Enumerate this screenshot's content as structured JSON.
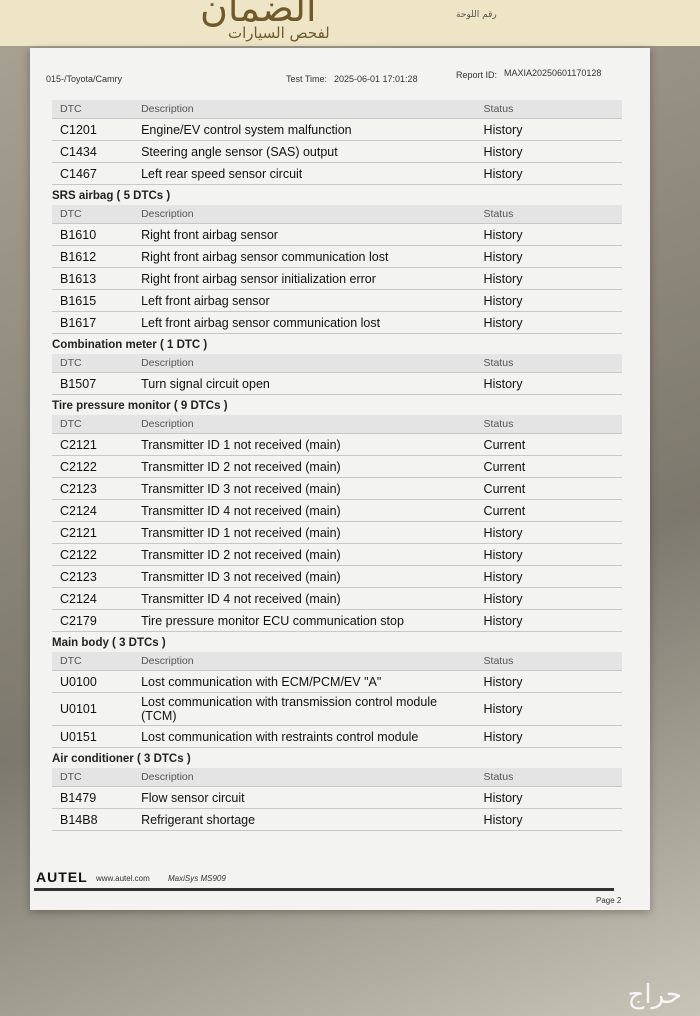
{
  "header": {
    "logo": "الضمان",
    "logo_subtitle": "لفحص السيارات",
    "plate_label": "رقم اللوحة"
  },
  "report": {
    "vehicle": "015-/Toyota/Camry",
    "test_time_label": "Test Time:",
    "test_time": "2025-06-01 17:01:28",
    "report_id_label": "Report ID:",
    "report_id": "MAXIA20250601170128"
  },
  "sections": [
    {
      "columns": [
        "DTC",
        "Description",
        "Status"
      ],
      "rows": [
        [
          "C1201",
          "Engine/EV control system malfunction",
          "History"
        ],
        [
          "C1434",
          "Steering angle sensor (SAS) output",
          "History"
        ],
        [
          "C1467",
          "Left rear speed sensor circuit",
          "History"
        ]
      ]
    },
    {
      "title": "SRS airbag ( 5 DTCs )",
      "columns": [
        "DTC",
        "Description",
        "Status"
      ],
      "rows": [
        [
          "B1610",
          "Right front airbag sensor",
          "History"
        ],
        [
          "B1612",
          "Right front airbag sensor communication lost",
          "History"
        ],
        [
          "B1613",
          "Right front airbag sensor initialization error",
          "History"
        ],
        [
          "B1615",
          "Left front airbag sensor",
          "History"
        ],
        [
          "B1617",
          "Left front airbag sensor communication lost",
          "History"
        ]
      ]
    },
    {
      "title": "Combination meter ( 1 DTC )",
      "columns": [
        "DTC",
        "Description",
        "Status"
      ],
      "rows": [
        [
          "B1507",
          "Turn signal circuit open",
          "History"
        ]
      ]
    },
    {
      "title": "Tire pressure monitor ( 9 DTCs )",
      "columns": [
        "DTC",
        "Description",
        "Status"
      ],
      "rows": [
        [
          "C2121",
          "Transmitter ID 1 not received (main)",
          "Current"
        ],
        [
          "C2122",
          "Transmitter ID 2 not received (main)",
          "Current"
        ],
        [
          "C2123",
          "Transmitter ID 3 not received (main)",
          "Current"
        ],
        [
          "C2124",
          "Transmitter ID 4 not received (main)",
          "Current"
        ],
        [
          "C2121",
          "Transmitter ID 1 not received (main)",
          "History"
        ],
        [
          "C2122",
          "Transmitter ID 2 not received (main)",
          "History"
        ],
        [
          "C2123",
          "Transmitter ID 3 not received (main)",
          "History"
        ],
        [
          "C2124",
          "Transmitter ID 4 not received (main)",
          "History"
        ],
        [
          "C2179",
          "Tire pressure monitor ECU communication stop",
          "History"
        ]
      ]
    },
    {
      "title": "Main body ( 3 DTCs )",
      "columns": [
        "DTC",
        "Description",
        "Status"
      ],
      "rows": [
        [
          "U0100",
          "Lost communication with ECM/PCM/EV \"A\"",
          "History"
        ],
        [
          "U0101",
          "Lost communication with transmission control module (TCM)",
          "History"
        ],
        [
          "U0151",
          "Lost communication with restraints control module",
          "History"
        ]
      ]
    },
    {
      "title": "Air conditioner ( 3 DTCs )",
      "columns": [
        "DTC",
        "Description",
        "Status"
      ],
      "rows": [
        [
          "B1479",
          "Flow sensor circuit",
          "History"
        ],
        [
          "B14B8",
          "Refrigerant shortage",
          "History"
        ]
      ]
    }
  ],
  "footer": {
    "brand": "AUTEL",
    "website": "www.autel.com",
    "model": "MaxiSys MS909",
    "page": "Page 2"
  },
  "watermark": "حراج"
}
